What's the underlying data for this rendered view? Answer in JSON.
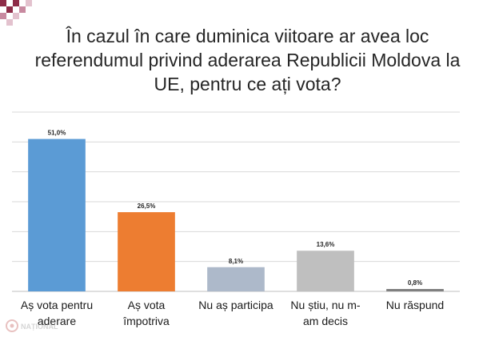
{
  "title_lines": [
    "În cazul în care duminica viitoare ar avea loc",
    "referendumul privind aderarea Republicii Moldova la",
    "UE, pentru ce ați vota?"
  ],
  "watermark": "NAȚIONAL",
  "colors": {
    "deco": "#8e2c48",
    "grid": "#d9d9d9",
    "axis": "#bfbfbf"
  },
  "chart_data": {
    "type": "bar",
    "title": "În cazul în care duminica viitoare ar avea loc referendumul privind aderarea Republicii Moldova la UE, pentru ce ați vota?",
    "categories": [
      [
        "Aș vota pentru",
        "aderare"
      ],
      [
        "Aș vota",
        "împotriva"
      ],
      [
        "Nu aș participa"
      ],
      [
        "Nu știu, nu m-",
        "am decis"
      ],
      [
        "Nu răspund"
      ]
    ],
    "values": [
      51.0,
      26.5,
      8.1,
      13.6,
      0.8
    ],
    "value_labels": [
      "51,0%",
      "26,5%",
      "8,1%",
      "13,6%",
      "0,8%"
    ],
    "bar_colors": [
      "#5b9bd5",
      "#ed7d31",
      "#adb9ca",
      "#bfbfbf",
      "#7f7f7f"
    ],
    "ylim": [
      0,
      60
    ],
    "grid": true,
    "legend": "none",
    "xlabel": "",
    "ylabel": ""
  }
}
